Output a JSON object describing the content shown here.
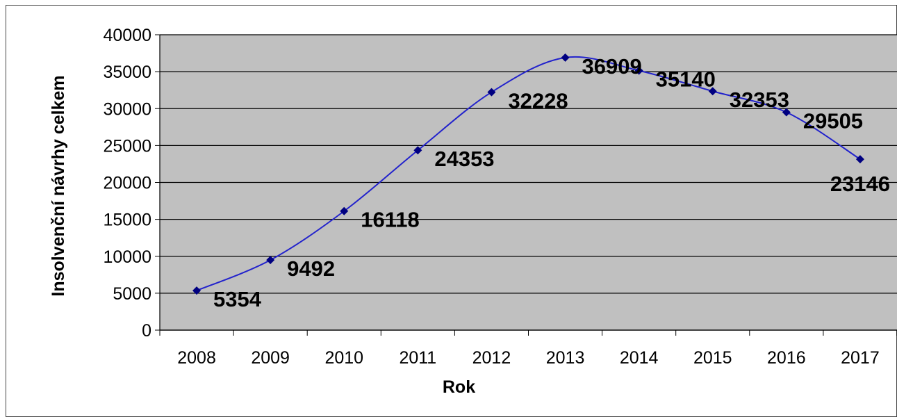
{
  "chart_data": {
    "type": "line",
    "title": "",
    "xlabel": "Rok",
    "ylabel": "Insolvenční návrhy celkem",
    "categories": [
      "2008",
      "2009",
      "2010",
      "2011",
      "2012",
      "2013",
      "2014",
      "2015",
      "2016",
      "2017"
    ],
    "series": [
      {
        "values": [
          5354,
          9492,
          16118,
          24353,
          32228,
          36909,
          35140,
          32353,
          29505,
          23146
        ]
      }
    ],
    "data_labels": [
      "5354",
      "9492",
      "16118",
      "24353",
      "32228",
      "36909",
      "35140",
      "32353",
      "29505",
      "23146"
    ],
    "y_ticks": [
      "0",
      "5000",
      "10000",
      "15000",
      "20000",
      "25000",
      "30000",
      "35000",
      "40000"
    ],
    "ylim": [
      0,
      40000
    ],
    "grid": true,
    "legend": "none",
    "colors": {
      "line": "#2222cc",
      "marker": "#000080",
      "plot_background": "#c0c0c0",
      "gridline": "#000000"
    }
  }
}
